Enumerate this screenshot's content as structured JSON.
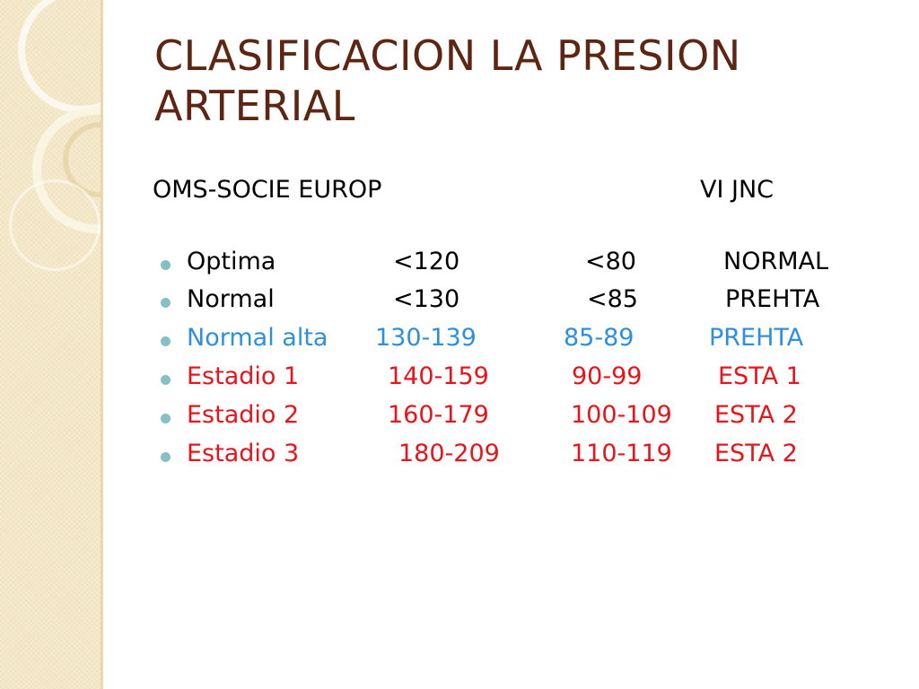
{
  "slide": {
    "title_line1": "CLASIFICACION LA PRESION",
    "title_line2": "ARTERIAL",
    "header_left": "OMS-SOCIE  EUROP",
    "header_right": "VI JNC",
    "rows": [
      {
        "category": "Optima",
        "systolic": "<120",
        "diastolic": "<80",
        "jnc": "NORMAL",
        "color": "#000000"
      },
      {
        "category": "Normal",
        "systolic": "<130",
        "diastolic": "<85",
        "jnc": "PREHTA",
        "color": "#000000"
      },
      {
        "category": "Normal alta",
        "systolic": "130-139",
        "diastolic": "85-89",
        "jnc": "PREHTA",
        "color": "#2e8fe0"
      },
      {
        "category": "Estadio  1",
        "systolic": "140-159",
        "diastolic": "90-99",
        "jnc": "ESTA 1",
        "color": "#e8141b"
      },
      {
        "category": "Estadio  2",
        "systolic": "160-179",
        "diastolic": "100-109",
        "jnc": "ESTA 2",
        "color": "#e8141b"
      },
      {
        "category": "Estadio  3",
        "systolic": "180-209",
        "diastolic": "110-119",
        "jnc": "ESTA 2",
        "color": "#e8141b"
      }
    ]
  },
  "colors": {
    "title": "#5c2612",
    "bullet": "#84c0c6",
    "sidebar": "#f4e7c7"
  }
}
